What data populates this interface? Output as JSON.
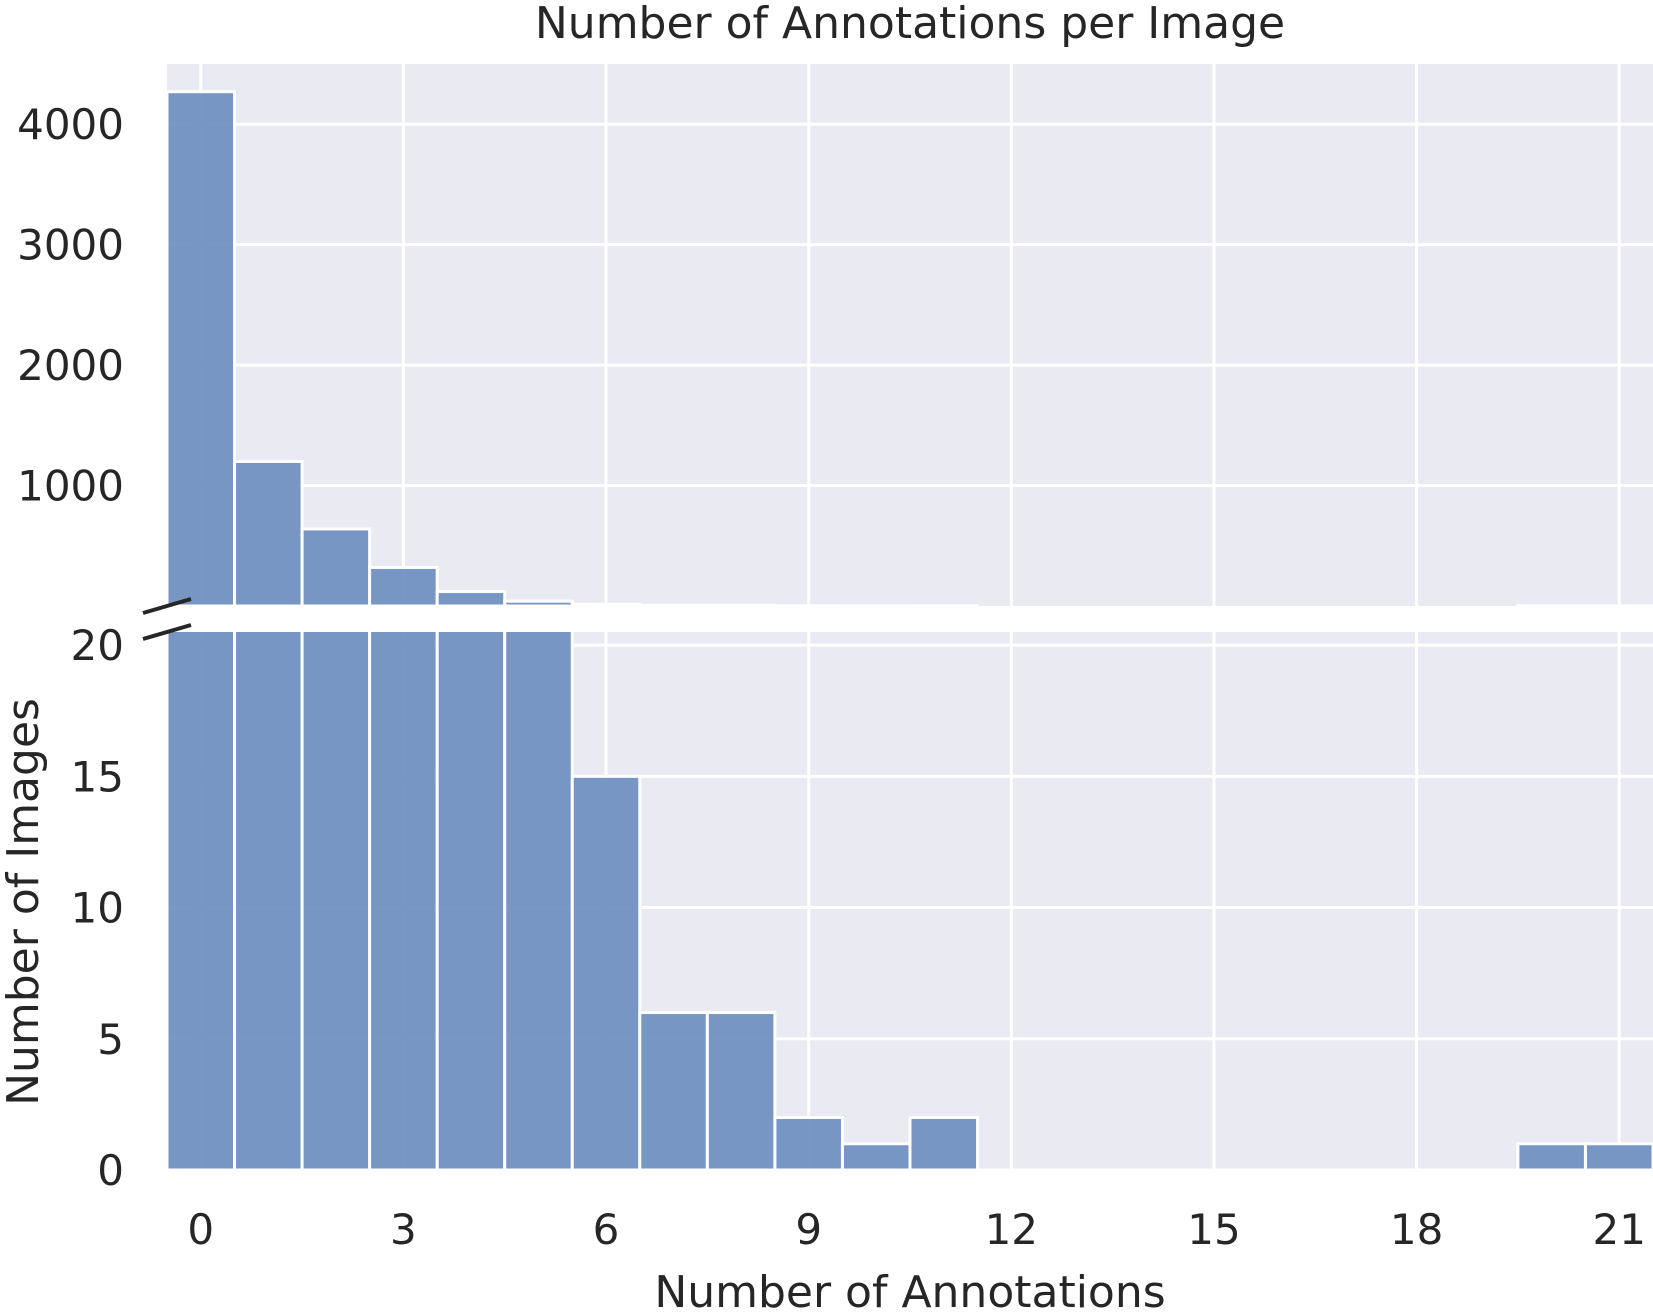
{
  "chart_data": {
    "type": "bar",
    "title": "Number of Annotations per Image",
    "xlabel": "Number of Annotations",
    "ylabel": "Number of Images",
    "x_ticks": [
      0,
      3,
      6,
      9,
      12,
      15,
      18,
      21
    ],
    "x_range": [
      -0.5,
      21.5
    ],
    "broken_y_axis": true,
    "upper_panel": {
      "y_ticks": [
        1000,
        2000,
        3000,
        4000
      ],
      "y_tick_labels": [
        "1000",
        "2000",
        "3000",
        "4000"
      ],
      "ylim": [
        0,
        4500
      ]
    },
    "lower_panel": {
      "y_ticks": [
        0,
        5,
        10,
        15,
        20
      ],
      "y_tick_labels": [
        "0",
        "5",
        "10",
        "15",
        "20"
      ],
      "ylim": [
        0,
        20.5
      ]
    },
    "bins": [
      0,
      1,
      2,
      3,
      4,
      5,
      6,
      7,
      8,
      9,
      10,
      11,
      12,
      13,
      14,
      15,
      16,
      17,
      18,
      19,
      20,
      21
    ],
    "counts": [
      4270,
      1200,
      640,
      320,
      120,
      40,
      15,
      6,
      6,
      2,
      1,
      2,
      0,
      0,
      0,
      0,
      0,
      0,
      0,
      0,
      1,
      1
    ],
    "bar_color": "#6c8ebf",
    "background_color": "#eaeaf2",
    "grid": true
  }
}
